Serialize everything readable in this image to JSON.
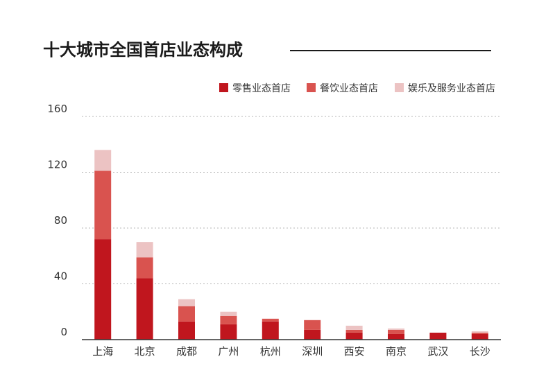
{
  "chart_data": {
    "type": "bar",
    "stacked": true,
    "title": "十大城市全国首店业态构成",
    "categories": [
      "上海",
      "北京",
      "成都",
      "广州",
      "杭州",
      "深圳",
      "西安",
      "南京",
      "武汉",
      "长沙"
    ],
    "series": [
      {
        "name": "零售业态首店",
        "color": "#c0161e",
        "values": [
          72,
          44,
          13,
          11,
          13,
          7,
          5,
          4,
          5,
          4
        ]
      },
      {
        "name": "餐饮业态首店",
        "color": "#d9534f",
        "values": [
          49,
          15,
          11,
          6,
          2,
          7,
          2,
          3,
          0,
          1
        ]
      },
      {
        "name": "娱乐及服务业态首店",
        "color": "#ecc3c3",
        "values": [
          15,
          11,
          5,
          3,
          0,
          0,
          3,
          1,
          0,
          1
        ]
      }
    ],
    "yticks": [
      "0",
      "40",
      "80",
      "120",
      "160"
    ],
    "ylim": [
      0,
      160
    ],
    "grid": true,
    "legend_position": "top-right"
  }
}
